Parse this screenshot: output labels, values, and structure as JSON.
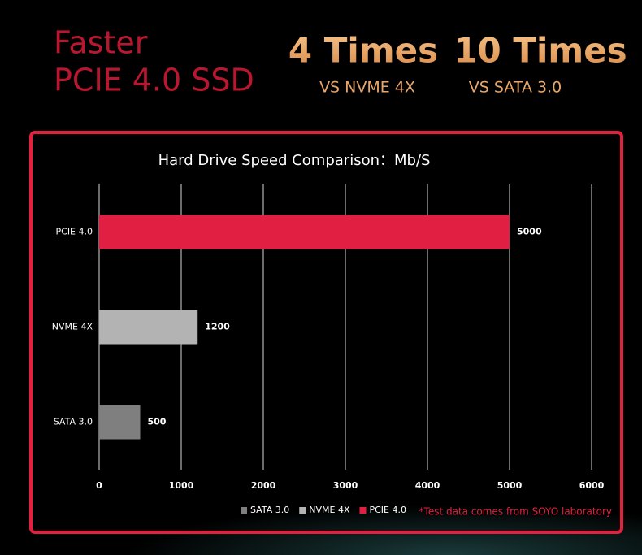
{
  "header": {
    "title_line1": "Faster",
    "title_line2": "PCIE 4.0 SSD",
    "claims": [
      {
        "headline": "4 Times",
        "subline": "VS NVME 4X"
      },
      {
        "headline": "10 Times",
        "subline": "VS SATA 3.0"
      }
    ]
  },
  "chart_data": {
    "type": "hbar",
    "title": "Hard Drive Speed Comparison：Mb/S",
    "categories": [
      "PCIE 4.0",
      "NVME 4X",
      "SATA 3.0"
    ],
    "series": [
      {
        "name": "SATA 3.0",
        "color": "#7f7f7f",
        "values": [
          null,
          null,
          500
        ]
      },
      {
        "name": "NVME 4X",
        "color": "#b3b3b3",
        "values": [
          null,
          1200,
          null
        ]
      },
      {
        "name": "PCIE 4.0",
        "color": "#e01f42",
        "values": [
          5000,
          null,
          null
        ]
      }
    ],
    "xlim": [
      0,
      6000
    ],
    "xticks": [
      0,
      1000,
      2000,
      3000,
      4000,
      5000,
      6000
    ],
    "grid": true,
    "legend": "bottom",
    "note": "*Test data comes from SOYO laboratory"
  }
}
